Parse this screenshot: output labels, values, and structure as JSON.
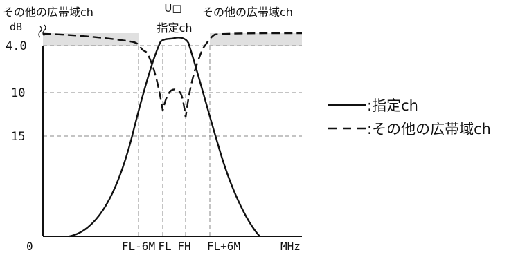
{
  "chart_data": {
    "type": "line",
    "y_unit": "dB",
    "y_ticks": [
      "4.0",
      "10",
      "15"
    ],
    "x_origin": "0",
    "x_ticks": [
      "FL-6M",
      "FL",
      "FH",
      "FL+6M"
    ],
    "x_unit": "MHz",
    "top_labels": {
      "left": "その他の広帯域ch",
      "center_line1": "U□",
      "center_line2": "指定ch",
      "right": "その他の広帯域ch"
    },
    "legend": [
      {
        "style": "solid",
        "label": ":指定ch"
      },
      {
        "style": "dashed",
        "label": ":その他の広帯域ch"
      }
    ]
  }
}
